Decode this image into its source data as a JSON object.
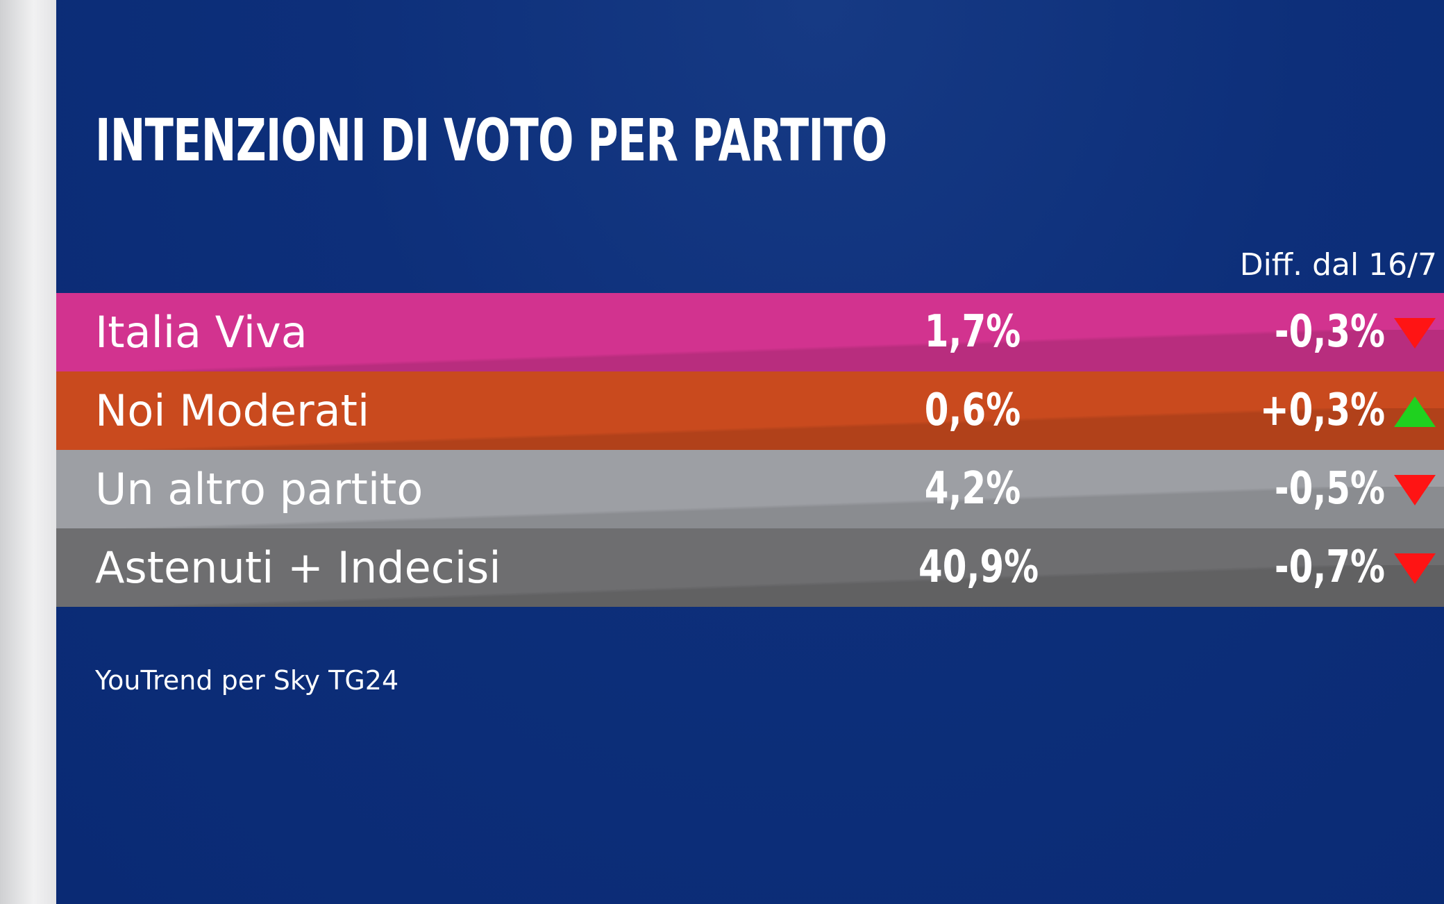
{
  "chart_data": {
    "type": "table",
    "title": "INTENZIONI DI VOTO PER PARTITO",
    "diff_header": "Diff. dal 16/7",
    "source": "YouTrend per Sky TG24",
    "rows": [
      {
        "party": "Italia Viva",
        "value_label": "1,7%",
        "value": 1.7,
        "diff_label": "-0,3%",
        "diff": -0.3,
        "trend": "down",
        "color": "#d2338f"
      },
      {
        "party": "Noi Moderati",
        "value_label": "0,6%",
        "value": 0.6,
        "diff_label": "+0,3%",
        "diff": 0.3,
        "trend": "up",
        "color": "#c94a1e"
      },
      {
        "party": "Un altro partito",
        "value_label": "4,2%",
        "value": 4.2,
        "diff_label": "-0,5%",
        "diff": -0.5,
        "trend": "down",
        "color": "#9d9fa4"
      },
      {
        "party": "Astenuti + Indecisi",
        "value_label": "40,9%",
        "value": 40.9,
        "diff_label": "-0,7%",
        "diff": -0.7,
        "trend": "down",
        "color": "#6e6e70"
      }
    ]
  },
  "colors": {
    "background": "#0c2f7a",
    "arrow_down": "#ff1414",
    "arrow_up": "#1fd11f"
  }
}
